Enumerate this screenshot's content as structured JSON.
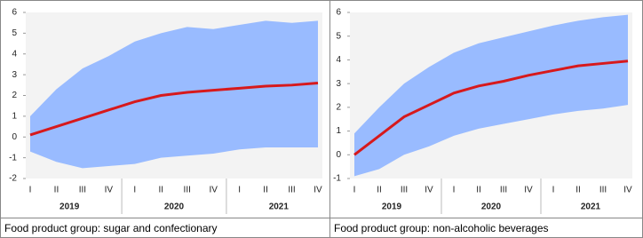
{
  "chart_data": [
    {
      "type": "line",
      "caption": "Food product group: sugar and confectionary",
      "categories": [
        "I",
        "II",
        "III",
        "IV",
        "I",
        "II",
        "III",
        "IV",
        "I",
        "II",
        "III",
        "IV"
      ],
      "years": [
        "2019",
        "2020",
        "2021"
      ],
      "values": [
        0.1,
        0.5,
        0.9,
        1.3,
        1.7,
        2.0,
        2.15,
        2.25,
        2.35,
        2.45,
        2.5,
        2.6
      ],
      "upper": [
        1.0,
        2.3,
        3.3,
        3.9,
        4.6,
        5.0,
        5.3,
        5.2,
        5.4,
        5.6,
        5.5,
        5.6
      ],
      "lower": [
        -0.7,
        -1.2,
        -1.5,
        -1.4,
        -1.3,
        -1.0,
        -0.9,
        -0.8,
        -0.6,
        -0.5,
        -0.5,
        -0.5
      ],
      "line_color": "#d7191c",
      "band_color": "#99bbff",
      "ylim": [
        -2,
        6
      ],
      "yticks": [
        -2,
        -1,
        0,
        1,
        2,
        3,
        4,
        5,
        6
      ]
    },
    {
      "type": "line",
      "caption": "Food product group: non-alcoholic beverages",
      "categories": [
        "I",
        "II",
        "III",
        "IV",
        "I",
        "II",
        "III",
        "IV",
        "I",
        "II",
        "III",
        "IV"
      ],
      "years": [
        "2019",
        "2020",
        "2021"
      ],
      "values": [
        0.0,
        0.8,
        1.6,
        2.1,
        2.6,
        2.9,
        3.1,
        3.35,
        3.55,
        3.75,
        3.85,
        3.95
      ],
      "upper": [
        0.9,
        2.0,
        3.0,
        3.7,
        4.3,
        4.7,
        4.95,
        5.2,
        5.45,
        5.65,
        5.8,
        5.9
      ],
      "lower": [
        -0.9,
        -0.6,
        0.0,
        0.35,
        0.8,
        1.1,
        1.3,
        1.5,
        1.7,
        1.85,
        1.95,
        2.1
      ],
      "line_color": "#d7191c",
      "band_color": "#99bbff",
      "ylim": [
        -1,
        6
      ],
      "yticks": [
        -1,
        0,
        1,
        2,
        3,
        4,
        5,
        6
      ]
    }
  ]
}
